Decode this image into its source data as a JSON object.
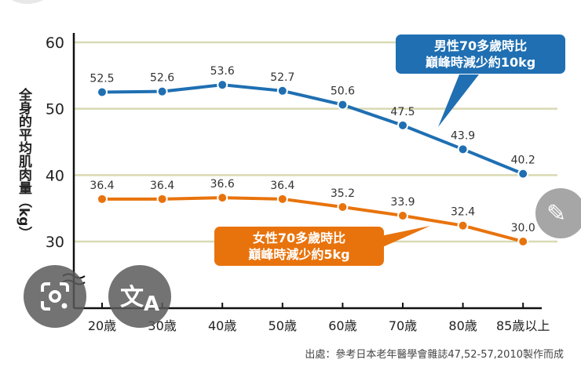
{
  "chart_data": {
    "type": "line",
    "ylabel": "全身的平均肌肉量（kg）",
    "categories": [
      "20歳",
      "30歳",
      "40歳",
      "50歳",
      "60歳",
      "70歳",
      "80歳",
      "85歳以上"
    ],
    "ylim": [
      30,
      60
    ],
    "yticks": [
      30,
      40,
      50,
      60
    ],
    "grid": true,
    "series": [
      {
        "key": "male",
        "color": "#1f6fb2",
        "values": [
          52.5,
          52.6,
          53.6,
          52.7,
          50.6,
          47.5,
          43.9,
          40.2
        ]
      },
      {
        "key": "female",
        "color": "#e8730c",
        "values": [
          36.4,
          36.4,
          36.6,
          36.4,
          35.2,
          33.9,
          32.4,
          30.0
        ]
      }
    ],
    "annotations": {
      "male": "男性70多歲時比\n巔峰時減少約10kg",
      "female": "女性70多歲時比\n巔峰時減少約5kg"
    },
    "source": "出處：參考日本老年醫學會雜誌47,52-57,2010製作而成"
  },
  "overlay": {
    "lens_icon": "google-lens-icon",
    "translate_icon": "translate-icon",
    "edit_icon": "pencil-icon"
  }
}
